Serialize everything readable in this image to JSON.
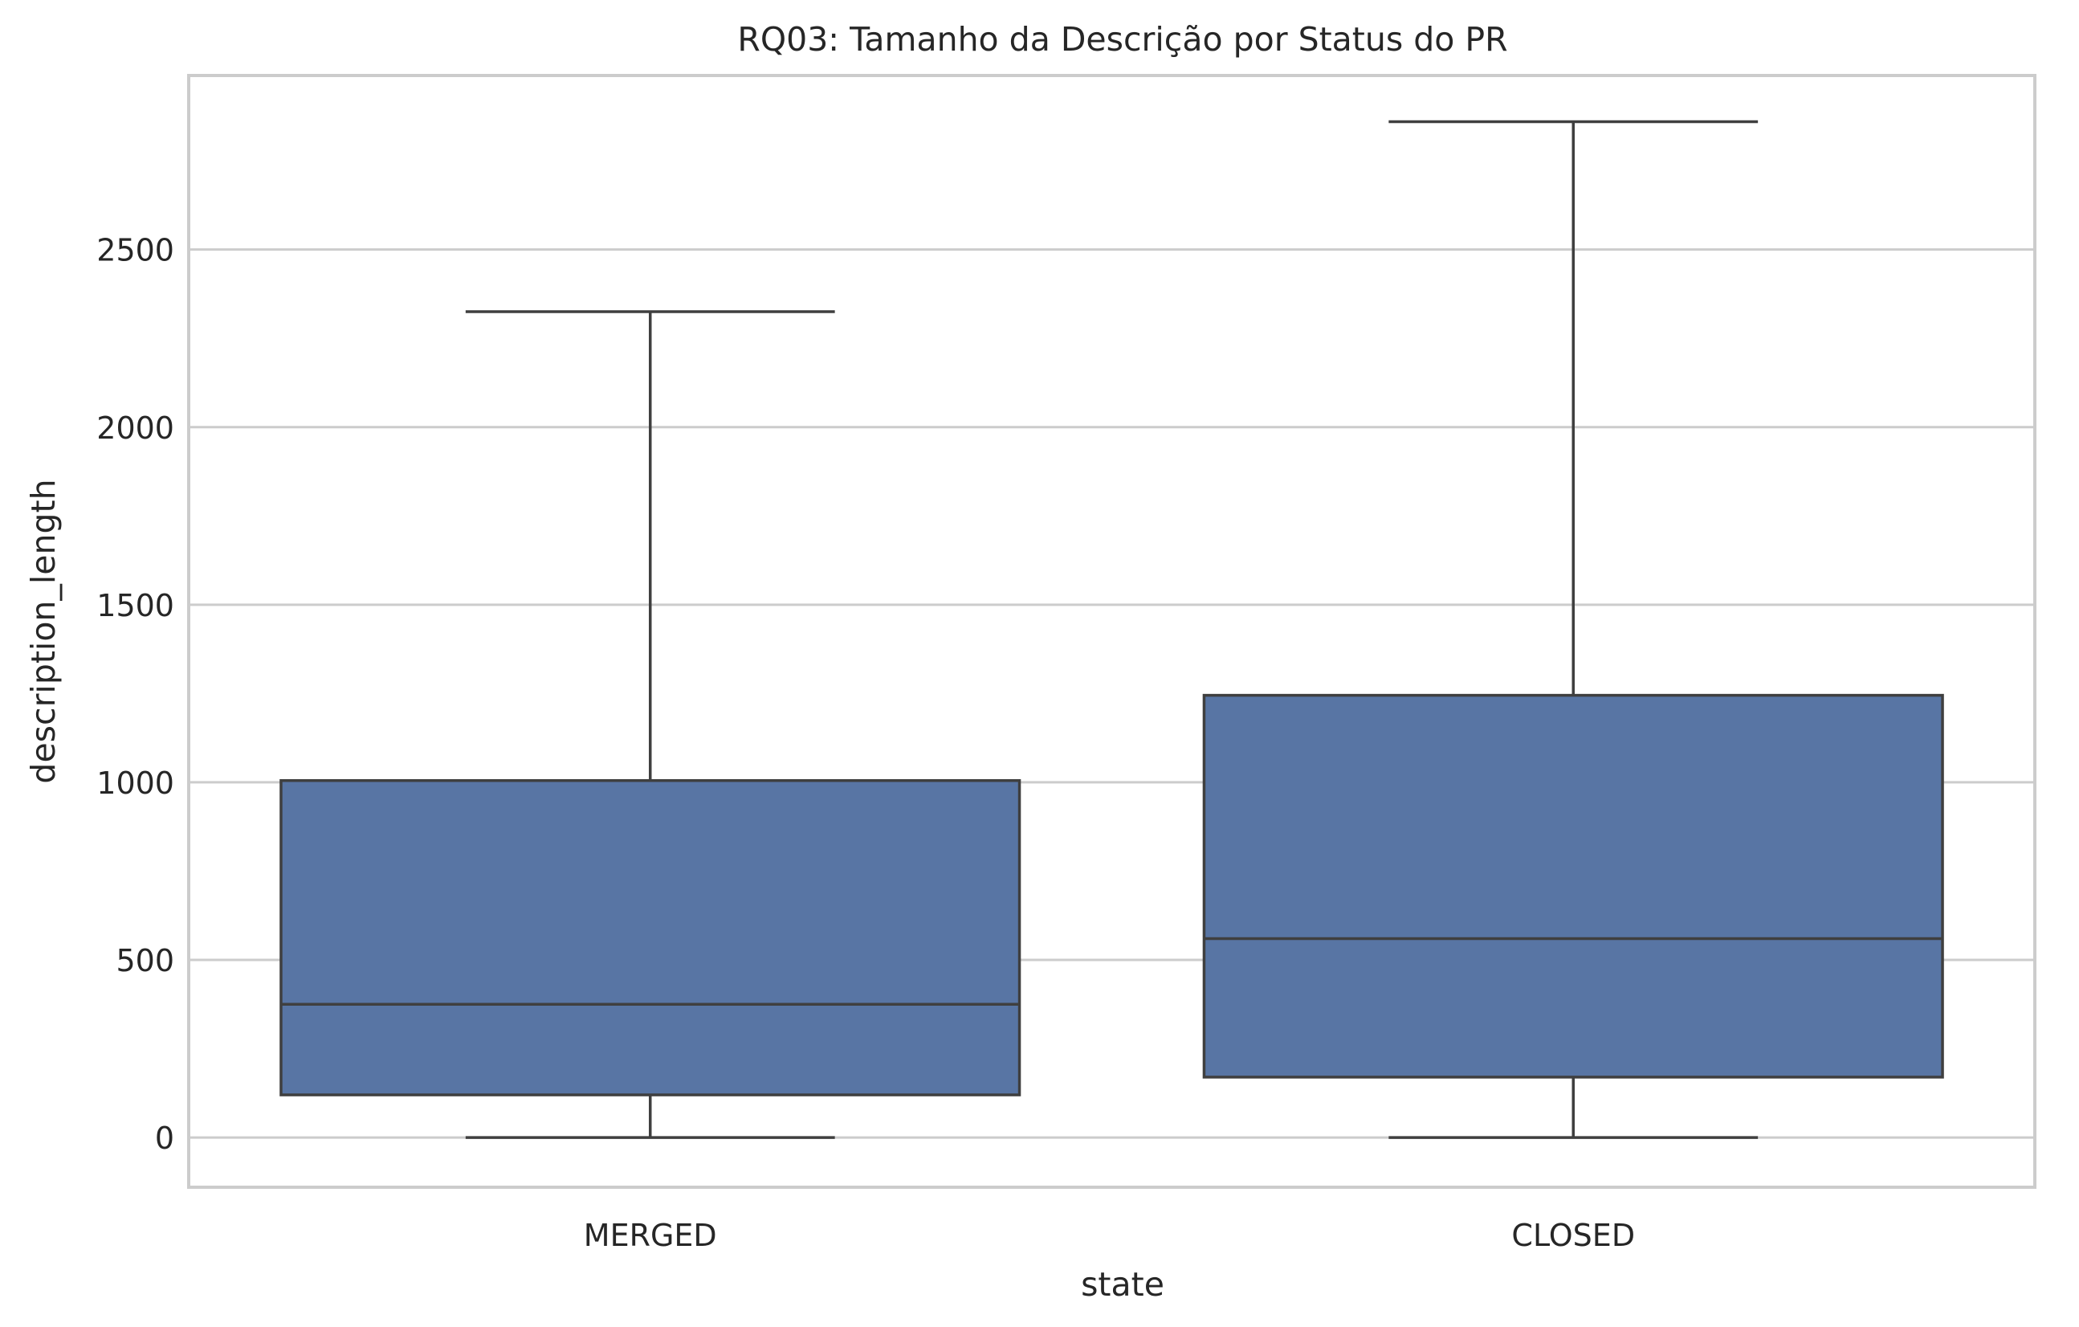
{
  "chart_data": {
    "type": "box",
    "title": "RQ03: Tamanho da Descrição por Status do PR",
    "xlabel": "state",
    "ylabel": "description_length",
    "categories": [
      "MERGED",
      "CLOSED"
    ],
    "boxes": [
      {
        "category": "MERGED",
        "whisker_low": 0,
        "q1": 120,
        "median": 375,
        "q3": 1005,
        "whisker_high": 2325
      },
      {
        "category": "CLOSED",
        "whisker_low": 0,
        "q1": 170,
        "median": 560,
        "q3": 1245,
        "whisker_high": 2860
      }
    ],
    "ylim": [
      -140,
      2990
    ],
    "yticks": [
      0,
      500,
      1000,
      1500,
      2000,
      2500
    ],
    "grid": "y",
    "colors": {
      "box_fill": "#5875a4",
      "line": "#3f3f3f",
      "grid": "#cccccc",
      "frame": "#cccccc"
    }
  }
}
